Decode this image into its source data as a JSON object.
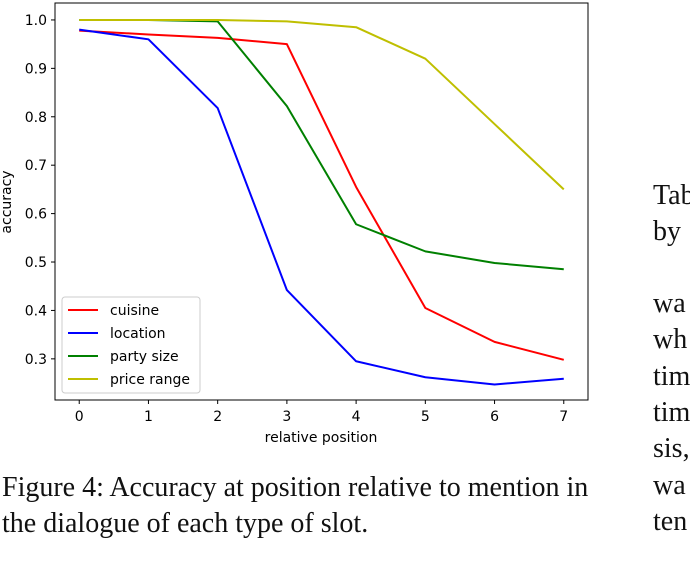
{
  "chart_data": {
    "type": "line",
    "x": [
      0,
      1,
      2,
      3,
      4,
      5,
      6,
      7
    ],
    "xlabel": "relative position",
    "ylabel": "accuracy",
    "xticks": [
      "0",
      "1",
      "2",
      "3",
      "4",
      "5",
      "6",
      "7"
    ],
    "yticks": [
      "0.3",
      "0.4",
      "0.5",
      "0.6",
      "0.7",
      "0.8",
      "0.9",
      "1.0"
    ],
    "xlim": [
      -0.35,
      7.35
    ],
    "ylim": [
      0.215,
      1.035
    ],
    "grid": false,
    "legend_position": "lower-left",
    "series": [
      {
        "name": "cuisine",
        "color": "#ff0000",
        "values": [
          0.978,
          0.97,
          0.963,
          0.95,
          0.655,
          0.405,
          0.335,
          0.298
        ]
      },
      {
        "name": "location",
        "color": "#0000ff",
        "values": [
          0.98,
          0.96,
          0.818,
          0.442,
          0.295,
          0.262,
          0.247,
          0.259
        ]
      },
      {
        "name": "party size",
        "color": "#008000",
        "values": [
          1.0,
          1.0,
          0.997,
          0.822,
          0.578,
          0.522,
          0.498,
          0.485
        ]
      },
      {
        "name": "price range",
        "color": "#bfbf00",
        "values": [
          1.0,
          1.0,
          1.0,
          0.997,
          0.985,
          0.92,
          0.785,
          0.65
        ]
      }
    ]
  },
  "caption": "Figure 4:  Accuracy at position relative to mention in the dialogue of each type of slot.",
  "side_text": {
    "lines_top": [
      "Tab",
      "by"
    ],
    "lines_bottom": [
      "wa",
      "wh",
      "tim",
      "tim",
      "sis,",
      "wa",
      "ten"
    ]
  }
}
